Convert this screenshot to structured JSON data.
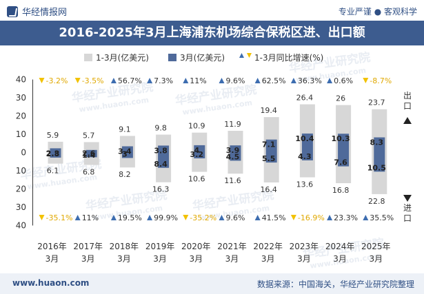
{
  "header": {
    "brand": "华经情报网",
    "tagline": "专业严谨 ● 客观科学"
  },
  "footer": {
    "website": "www.huaon.com",
    "source": "数据来源：中国海关，华经产业研究院整理"
  },
  "watermarks": [
    "华经产业研究院",
    "www.huaon.com"
  ],
  "colors": {
    "cumulative_bar": "#d7d7d7",
    "march_bar": "#4f6a9a",
    "rate_down": "#f2c200",
    "rate_up": "#3d6db0",
    "title_bg": "#3d5c8f"
  },
  "chart_data": {
    "type": "bar",
    "title": "2016-2025年3月上海浦东机场综合保税区进、出口额",
    "categories": [
      "2016年\n3月",
      "2017年\n3月",
      "2018年\n3月",
      "2019年\n3月",
      "2020年\n3月",
      "2021年\n3月",
      "2022年\n3月",
      "2023年\n3月",
      "2024年\n3月",
      "2025年\n3月"
    ],
    "legend": {
      "cumulative": "1-3月(亿美元)",
      "march": "3月(亿美元)",
      "rate": "1-3月同比增速(%)"
    },
    "side_labels": {
      "export": "出口",
      "import": "进口"
    },
    "y_ticks": [
      "40",
      "30",
      "20",
      "10",
      "0",
      "10",
      "20",
      "30",
      "40"
    ],
    "ylim": [
      -40,
      40
    ],
    "series": [
      {
        "name": "1-3月(亿美元)",
        "role": "export_cumulative",
        "values": [
          5.9,
          5.7,
          9.1,
          9.8,
          10.9,
          11.9,
          19.4,
          26.4,
          26,
          23.7
        ]
      },
      {
        "name": "3月(亿美元)",
        "role": "export_march",
        "values": [
          2.3,
          1.4,
          3.4,
          3.8,
          4,
          3.9,
          7.1,
          10.4,
          10.3,
          8.3
        ]
      },
      {
        "name": "1-3月(亿美元)",
        "role": "import_cumulative",
        "values": [
          6.1,
          6.8,
          8.2,
          16.3,
          10.6,
          11.6,
          16.4,
          13.6,
          16.8,
          22.8
        ]
      },
      {
        "name": "3月(亿美元)",
        "role": "import_march",
        "values": [
          2.8,
          2.6,
          3,
          8.4,
          3.2,
          4.5,
          5.5,
          4.3,
          7.6,
          10.5
        ]
      }
    ],
    "export_growth": [
      {
        "dir": "down",
        "text": "-3.2%"
      },
      {
        "dir": "down",
        "text": "-3.5%"
      },
      {
        "dir": "up",
        "text": "56.7%"
      },
      {
        "dir": "up",
        "text": "7.3%"
      },
      {
        "dir": "up",
        "text": "11%"
      },
      {
        "dir": "up",
        "text": "9.6%"
      },
      {
        "dir": "up",
        "text": "62.5%"
      },
      {
        "dir": "up",
        "text": "36.3%"
      },
      {
        "dir": "up",
        "text": "0.6%"
      },
      {
        "dir": "down",
        "text": "-8.7%"
      }
    ],
    "import_growth": [
      {
        "dir": "down",
        "text": "-35.1%"
      },
      {
        "dir": "up",
        "text": "11%"
      },
      {
        "dir": "up",
        "text": "19.5%"
      },
      {
        "dir": "up",
        "text": "99.9%"
      },
      {
        "dir": "down",
        "text": "-35.2%"
      },
      {
        "dir": "up",
        "text": "9.6%"
      },
      {
        "dir": "up",
        "text": "41.5%"
      },
      {
        "dir": "down",
        "text": "-16.9%"
      },
      {
        "dir": "up",
        "text": "23.3%"
      },
      {
        "dir": "up",
        "text": "35.5%"
      }
    ]
  }
}
